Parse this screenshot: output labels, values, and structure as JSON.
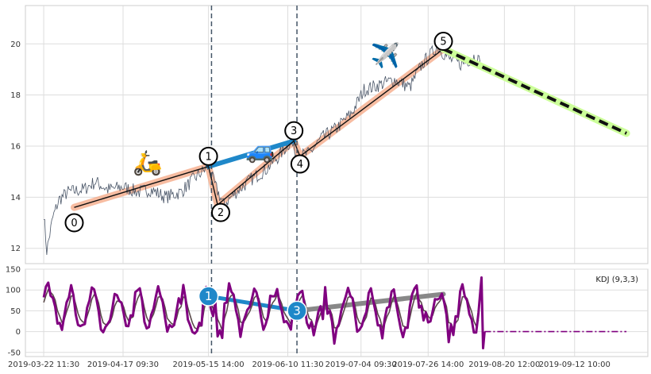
{
  "chart_data": [
    {
      "type": "line",
      "panel": "price",
      "ylim": [
        11.4,
        21.5
      ],
      "yticks": [
        "12",
        "14",
        "16",
        "18",
        "20"
      ],
      "grid": true,
      "series_color": "#4a5668",
      "price_path": [
        [
          "2019-03-22",
          13.4
        ],
        [
          "2019-03-23",
          11.9
        ],
        [
          "2019-03-25",
          13.2
        ],
        [
          "2019-03-27",
          13.9
        ],
        [
          "2019-03-30",
          14.2
        ],
        [
          "2019-04-04",
          14.3
        ],
        [
          "2019-04-08",
          14.6
        ],
        [
          "2019-04-12",
          14.3
        ],
        [
          "2019-04-17",
          14.4
        ],
        [
          "2019-04-22",
          14.2
        ],
        [
          "2019-04-26",
          14.3
        ],
        [
          "2019-05-01",
          14.0
        ],
        [
          "2019-05-06",
          14.2
        ],
        [
          "2019-05-10",
          14.7
        ],
        [
          "2019-05-15",
          15.2
        ],
        [
          "2019-05-17",
          14.5
        ],
        [
          "2019-05-20",
          13.7
        ],
        [
          "2019-05-24",
          14.2
        ],
        [
          "2019-05-29",
          14.7
        ],
        [
          "2019-06-03",
          15.1
        ],
        [
          "2019-06-07",
          15.6
        ],
        [
          "2019-06-11",
          16.2
        ],
        [
          "2019-06-13",
          15.6
        ],
        [
          "2019-06-17",
          15.7
        ],
        [
          "2019-06-21",
          16.3
        ],
        [
          "2019-06-26",
          16.7
        ],
        [
          "2019-07-01",
          17.3
        ],
        [
          "2019-07-05",
          18.2
        ],
        [
          "2019-07-10",
          18.4
        ],
        [
          "2019-07-15",
          18.6
        ],
        [
          "2019-07-20",
          18.3
        ],
        [
          "2019-07-24",
          19.2
        ],
        [
          "2019-07-29",
          19.9
        ],
        [
          "2019-08-02",
          19.4
        ],
        [
          "2019-08-06",
          19.2
        ],
        [
          "2019-08-10",
          19.5
        ],
        [
          "2019-08-12",
          19.3
        ]
      ],
      "vlines": [
        "2019-05-16",
        "2019-06-13"
      ],
      "waves": [
        {
          "label": "0",
          "x": "2019-04-01",
          "y": 13.6
        },
        {
          "label": "1",
          "x": "2019-05-15",
          "y": 15.2
        },
        {
          "label": "2",
          "x": "2019-05-18",
          "y": 13.7
        },
        {
          "label": "3",
          "x": "2019-06-12",
          "y": 16.2
        },
        {
          "label": "4",
          "x": "2019-06-14",
          "y": 15.6
        },
        {
          "label": "5",
          "x": "2019-07-31",
          "y": 19.8
        }
      ],
      "wave_labels": [
        {
          "label": "0",
          "x": "2019-04-01",
          "y": 13.0
        },
        {
          "label": "1",
          "x": "2019-05-15",
          "y": 15.6
        },
        {
          "label": "2",
          "x": "2019-05-19",
          "y": 13.4
        },
        {
          "label": "3",
          "x": "2019-06-12",
          "y": 16.6
        },
        {
          "label": "4",
          "x": "2019-06-14",
          "y": 15.3
        },
        {
          "label": "5",
          "x": "2019-07-31",
          "y": 20.1
        }
      ],
      "trend_up": {
        "from": 0,
        "to": 5,
        "color": "#f4a582"
      },
      "connector": {
        "from": 1,
        "to": 3,
        "color": "#1f88c9"
      },
      "forecast": {
        "from_x": "2019-07-31",
        "from_y": 19.8,
        "to_x": "2019-09-29",
        "to_y": 16.5,
        "color": "#111111",
        "halo": "#ccff99"
      },
      "emojis": [
        {
          "icon": "scooter-icon",
          "glyph": "🛵",
          "x": "2019-04-25",
          "y": 15.3
        },
        {
          "icon": "car-icon",
          "glyph": "🚙",
          "x": "2019-06-01",
          "y": 15.8
        },
        {
          "icon": "airplane-icon",
          "glyph": "✈️",
          "x": "2019-07-12",
          "y": 19.5
        }
      ]
    },
    {
      "type": "line",
      "panel": "kdj",
      "legend": "KDJ (9,3,3)",
      "ylim": [
        -60,
        150
      ],
      "yticks": [
        "150",
        "100",
        "50",
        "0",
        "-50"
      ],
      "grid": true,
      "k_color": "#800080",
      "d_color": "#5a4a4a",
      "kdj_start": "2019-03-22",
      "kdj_step_days": 0.75,
      "kdj_end": "2019-08-12",
      "flat_to": "2019-09-29",
      "markers": [
        {
          "label": "1",
          "x": "2019-05-15",
          "y": 85
        },
        {
          "label": "3",
          "x": "2019-06-13",
          "y": 50
        }
      ],
      "blue_line": {
        "from_x": "2019-05-15",
        "from_y": 85,
        "to_x": "2019-06-13",
        "to_y": 50,
        "color": "#1f88c9"
      },
      "gray_line": {
        "from_x": "2019-06-13",
        "from_y": 50,
        "to_x": "2019-07-31",
        "to_y": 90,
        "color": "#888888"
      }
    }
  ],
  "xticks": [
    {
      "label": "2019-03-22 11:30",
      "x": "2019-03-22"
    },
    {
      "label": "2019-04-17 09:30",
      "x": "2019-04-17"
    },
    {
      "label": "2019-05-15 14:00",
      "x": "2019-05-15"
    },
    {
      "label": "2019-06-10 11:30",
      "x": "2019-06-10"
    },
    {
      "label": "2019-07-04 09:30",
      "x": "2019-07-04"
    },
    {
      "label": "2019-07-26 14:00",
      "x": "2019-07-26"
    },
    {
      "label": "2019-08-20 12:00",
      "x": "2019-08-20"
    },
    {
      "label": "2019-09-12 10:00",
      "x": "2019-09-12"
    }
  ]
}
